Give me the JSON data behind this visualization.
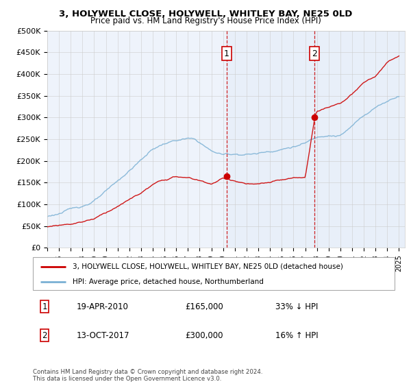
{
  "title": "3, HOLYWELL CLOSE, HOLYWELL, WHITLEY BAY, NE25 0LD",
  "subtitle": "Price paid vs. HM Land Registry's House Price Index (HPI)",
  "legend_line1": "3, HOLYWELL CLOSE, HOLYWELL, WHITLEY BAY, NE25 0LD (detached house)",
  "legend_line2": "HPI: Average price, detached house, Northumberland",
  "annotation1_date": "19-APR-2010",
  "annotation1_price": "£165,000",
  "annotation1_pct": "33% ↓ HPI",
  "annotation2_date": "13-OCT-2017",
  "annotation2_price": "£300,000",
  "annotation2_pct": "16% ↑ HPI",
  "ylim": [
    0,
    500000
  ],
  "xlim_start": 1995.0,
  "xlim_end": 2025.5,
  "sale1_x": 2010.3,
  "sale1_y": 165000,
  "sale2_x": 2017.78,
  "sale2_y": 300000,
  "red_line_color": "#cc0000",
  "blue_line_color": "#7ab0d4",
  "vline_color": "#cc0000",
  "footer": "Contains HM Land Registry data © Crown copyright and database right 2024.\nThis data is licensed under the Open Government Licence v3.0.",
  "yticks": [
    0,
    50000,
    100000,
    150000,
    200000,
    250000,
    300000,
    350000,
    400000,
    450000,
    500000
  ],
  "ytick_labels": [
    "£0",
    "£50K",
    "£100K",
    "£150K",
    "£200K",
    "£250K",
    "£300K",
    "£350K",
    "£400K",
    "£450K",
    "£500K"
  ],
  "xticks": [
    1995,
    1996,
    1997,
    1998,
    1999,
    2000,
    2001,
    2002,
    2003,
    2004,
    2005,
    2006,
    2007,
    2008,
    2009,
    2010,
    2011,
    2012,
    2013,
    2014,
    2015,
    2016,
    2017,
    2018,
    2019,
    2020,
    2021,
    2022,
    2023,
    2024,
    2025
  ],
  "hpi_base_x": [
    1995,
    1996,
    1997,
    1998,
    1999,
    2000,
    2001,
    2002,
    2003,
    2004,
    2005,
    2006,
    2007,
    2007.5,
    2008,
    2009,
    2010,
    2011,
    2012,
    2013,
    2014,
    2015,
    2016,
    2017,
    2018,
    2019,
    2020,
    2021,
    2022,
    2023,
    2024,
    2025
  ],
  "hpi_base_y": [
    72000,
    80000,
    88000,
    97000,
    110000,
    128000,
    150000,
    175000,
    200000,
    225000,
    238000,
    245000,
    248000,
    245000,
    238000,
    218000,
    210000,
    212000,
    213000,
    215000,
    222000,
    228000,
    235000,
    242000,
    255000,
    265000,
    265000,
    285000,
    310000,
    330000,
    345000,
    360000
  ],
  "red_base_x": [
    1995,
    1996,
    1997,
    1998,
    1999,
    2000,
    2001,
    2002,
    2003,
    2004,
    2005,
    2006,
    2007,
    2008,
    2009,
    2010,
    2011,
    2012,
    2013,
    2014,
    2015,
    2016,
    2017,
    2017.85,
    2018,
    2019,
    2020,
    2021,
    2022,
    2023,
    2024,
    2025
  ],
  "red_base_y": [
    48000,
    52000,
    56000,
    62000,
    70000,
    85000,
    100000,
    115000,
    130000,
    148000,
    158000,
    165000,
    162000,
    155000,
    148000,
    160000,
    155000,
    148000,
    145000,
    148000,
    152000,
    155000,
    155000,
    300000,
    310000,
    320000,
    330000,
    350000,
    375000,
    390000,
    420000,
    435000
  ]
}
